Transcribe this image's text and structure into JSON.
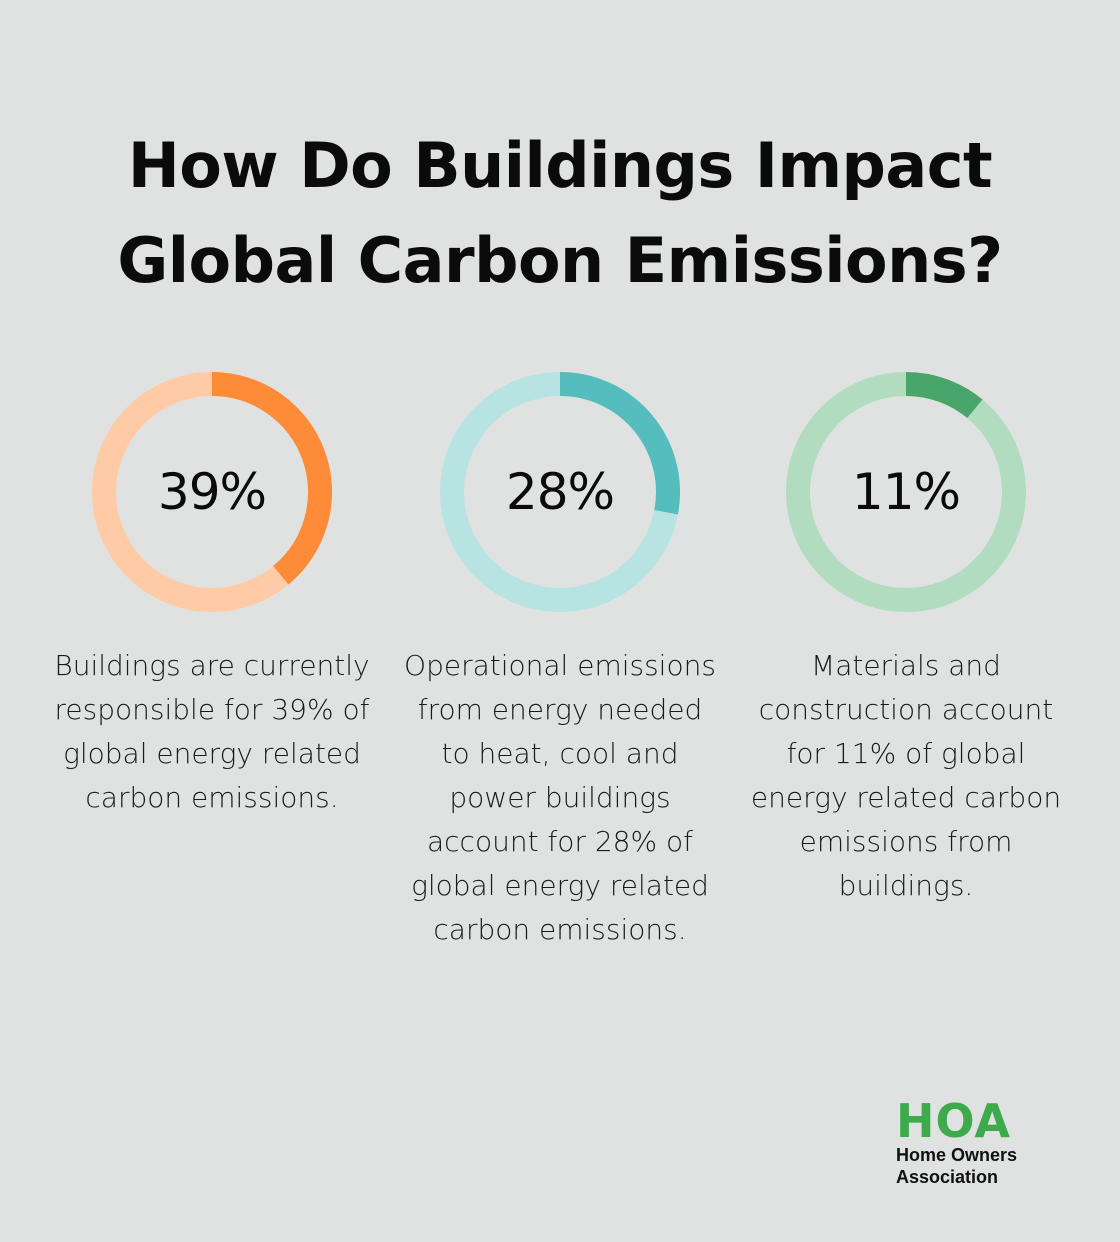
{
  "title_lines": [
    "How Do Buildings Impact",
    "Global Carbon Emissions?"
  ],
  "chart_data": [
    {
      "type": "pie",
      "style": "donut",
      "value": 39,
      "label": "39%",
      "caption": "Buildings are currently responsible for 39% of global energy related carbon emissions.",
      "accent_color": "#fd8b37",
      "track_color": "#ffcba6"
    },
    {
      "type": "pie",
      "style": "donut",
      "value": 28,
      "label": "28%",
      "caption": "Operational emissions from energy needed to heat, cool and power buildings account for 28% of global energy related carbon emissions.",
      "accent_color": "#55bdbe",
      "track_color": "#b7e3e3"
    },
    {
      "type": "pie",
      "style": "donut",
      "value": 11,
      "label": "11%",
      "caption": "Materials and construction account for 11% of global energy related carbon emissions from buildings.",
      "accent_color": "#49a66a",
      "track_color": "#b1dcc0"
    }
  ],
  "logo": {
    "mark": "HOA",
    "line1": "Home Owners",
    "line2": "Association",
    "color": "#3daa4b"
  }
}
